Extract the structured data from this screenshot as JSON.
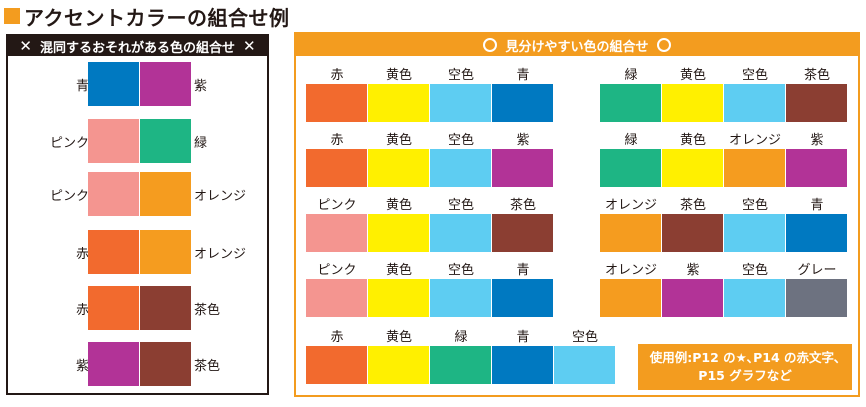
{
  "title": "アクセントカラーの組合せ例",
  "colors": {
    "red": "#f26a2e",
    "yellow": "#fff000",
    "sky": "#5ecdf2",
    "blue": "#0079c1",
    "green": "#1eb584",
    "brown": "#8b3e32",
    "purple": "#b23397",
    "pink": "#f49590",
    "orange": "#f59c1f",
    "gray": "#6d7280",
    "accent": "#f39c1f"
  },
  "left": {
    "x_mark": "✕",
    "header": "混同するおそれがある色の組合せ",
    "rows": [
      {
        "left": "青",
        "right": "紫",
        "c1": "blue",
        "c2": "purple"
      },
      {
        "left": "ピンク",
        "right": "緑",
        "c1": "pink",
        "c2": "green"
      },
      {
        "left": "ピンク",
        "right": "オレンジ",
        "c1": "pink",
        "c2": "orange"
      },
      {
        "left": "赤",
        "right": "オレンジ",
        "c1": "red",
        "c2": "orange"
      },
      {
        "left": "赤",
        "right": "茶色",
        "c1": "red",
        "c2": "brown"
      },
      {
        "left": "紫",
        "right": "茶色",
        "c1": "purple",
        "c2": "brown"
      }
    ]
  },
  "right": {
    "circle_mark": "〇",
    "header": "見分けやすい色の組合せ",
    "combos": [
      {
        "labels": [
          "赤",
          "黄色",
          "空色",
          "青"
        ],
        "colors": [
          "red",
          "yellow",
          "sky",
          "blue"
        ]
      },
      {
        "labels": [
          "緑",
          "黄色",
          "空色",
          "茶色"
        ],
        "colors": [
          "green",
          "yellow",
          "sky",
          "brown"
        ]
      },
      {
        "labels": [
          "赤",
          "黄色",
          "空色",
          "紫"
        ],
        "colors": [
          "red",
          "yellow",
          "sky",
          "purple"
        ]
      },
      {
        "labels": [
          "緑",
          "黄色",
          "オレンジ",
          "紫"
        ],
        "colors": [
          "green",
          "yellow",
          "orange",
          "purple"
        ]
      },
      {
        "labels": [
          "ピンク",
          "黄色",
          "空色",
          "茶色"
        ],
        "colors": [
          "pink",
          "yellow",
          "sky",
          "brown"
        ]
      },
      {
        "labels": [
          "オレンジ",
          "茶色",
          "空色",
          "青"
        ],
        "colors": [
          "orange",
          "brown",
          "sky",
          "blue"
        ]
      },
      {
        "labels": [
          "ピンク",
          "黄色",
          "空色",
          "青"
        ],
        "colors": [
          "pink",
          "yellow",
          "sky",
          "blue"
        ]
      },
      {
        "labels": [
          "オレンジ",
          "紫",
          "空色",
          "グレー"
        ],
        "colors": [
          "orange",
          "purple",
          "sky",
          "gray"
        ]
      },
      {
        "labels": [
          "赤",
          "黄色",
          "緑",
          "青",
          "空色"
        ],
        "colors": [
          "red",
          "yellow",
          "green",
          "blue",
          "sky"
        ]
      }
    ],
    "usage_line1": "使用例:P12 の★､P14 の赤文字､",
    "usage_line2": "P15 グラフなど"
  }
}
